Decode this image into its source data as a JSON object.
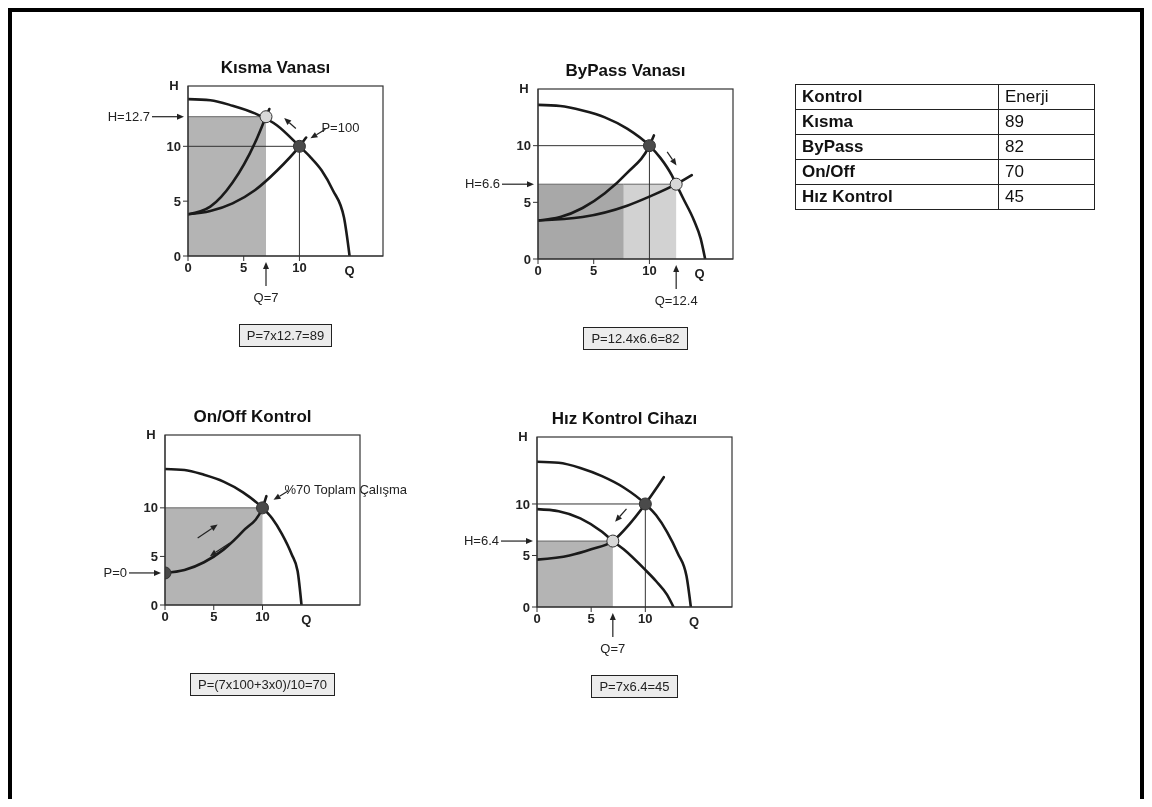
{
  "chart_data": [
    {
      "type": "line",
      "title": "Kısma Vanası",
      "xlabel": "Q",
      "ylabel": "H",
      "xlim": [
        0,
        17.5
      ],
      "ylim": [
        0,
        15.5
      ],
      "xticks": [
        0,
        5,
        10
      ],
      "yticks": [
        0,
        5,
        10
      ],
      "series": [
        {
          "type": "area",
          "color": "#b4b4b4",
          "x": [
            0,
            7
          ],
          "values": [
            12.7,
            12.7
          ]
        },
        {
          "type": "line",
          "color": "#333333",
          "x": [
            0,
            10
          ],
          "values": [
            10,
            10
          ]
        },
        {
          "type": "line",
          "color": "#333333",
          "x": [
            10,
            10
          ],
          "values": [
            0,
            10
          ]
        },
        {
          "type": "line",
          "color": "#1a1a1a",
          "x": [
            0,
            2,
            4,
            6,
            8,
            10,
            11,
            12,
            13,
            14,
            14.5
          ],
          "values": [
            14.3,
            14.2,
            13.7,
            13.0,
            11.9,
            10,
            9.0,
            7.8,
            6.0,
            3.5,
            0
          ]
        },
        {
          "type": "line",
          "color": "#1a1a1a",
          "x": [
            0,
            2,
            4,
            6,
            8,
            10,
            10.6
          ],
          "values": [
            3.8,
            4.1,
            4.8,
            6.0,
            7.8,
            10,
            10.8
          ]
        },
        {
          "type": "line",
          "color": "#1a1a1a",
          "x": [
            0,
            2,
            4,
            6,
            7,
            7.3
          ],
          "values": [
            3.8,
            4.5,
            6.7,
            10.3,
            12.7,
            13.4
          ]
        },
        {
          "type": "scatter",
          "marker": "circle",
          "color": "#4a4a4a",
          "x": [
            10
          ],
          "values": [
            10
          ]
        },
        {
          "type": "scatter",
          "marker": "circle",
          "color": "#d8d8d8",
          "x": [
            7
          ],
          "values": [
            12.7
          ]
        }
      ],
      "annotations": [
        {
          "text": "H=12.7",
          "x": 0,
          "y": 12.7
        },
        {
          "text": "P=100",
          "x": 10,
          "y": 10
        },
        {
          "text": "Q=7",
          "x": 7,
          "y": 0
        },
        "P=7x12.7=89"
      ]
    },
    {
      "type": "line",
      "title": "ByPass Vanası",
      "xlabel": "Q",
      "ylabel": "H",
      "xlim": [
        0,
        17.5
      ],
      "ylim": [
        0,
        15
      ],
      "xticks": [
        0,
        5,
        10
      ],
      "yticks": [
        0,
        5,
        10
      ],
      "series": [
        {
          "type": "area",
          "color": "#a8a8a8",
          "x": [
            0,
            7.7
          ],
          "values": [
            6.6,
            6.6
          ]
        },
        {
          "type": "area",
          "color": "#d2d2d2",
          "x": [
            7.7,
            12.4
          ],
          "values": [
            6.6,
            6.6
          ]
        },
        {
          "type": "line",
          "color": "#333333",
          "x": [
            0,
            10
          ],
          "values": [
            10,
            10
          ]
        },
        {
          "type": "line",
          "color": "#333333",
          "x": [
            10,
            10
          ],
          "values": [
            0,
            10
          ]
        },
        {
          "type": "line",
          "color": "#1a1a1a",
          "x": [
            0,
            2,
            4,
            6,
            8,
            10,
            11,
            12,
            12.4,
            13,
            14,
            14.6,
            15
          ],
          "values": [
            13.6,
            13.5,
            13.1,
            12.5,
            11.5,
            10,
            8.9,
            7.4,
            6.6,
            5.4,
            3.4,
            1.8,
            0
          ]
        },
        {
          "type": "line",
          "color": "#1a1a1a",
          "x": [
            0,
            2,
            4,
            6,
            8,
            10,
            10.4
          ],
          "values": [
            3.4,
            3.7,
            4.5,
            5.8,
            7.6,
            10,
            10.9
          ]
        },
        {
          "type": "line",
          "color": "#1a1a1a",
          "x": [
            0,
            4,
            8,
            10,
            12.4,
            13.8
          ],
          "values": [
            3.4,
            3.7,
            4.7,
            5.5,
            6.6,
            7.4
          ]
        },
        {
          "type": "scatter",
          "marker": "circle",
          "color": "#4a4a4a",
          "x": [
            10
          ],
          "values": [
            10
          ]
        },
        {
          "type": "scatter",
          "marker": "circle",
          "color": "#d8d8d8",
          "x": [
            12.4
          ],
          "values": [
            6.6
          ]
        }
      ],
      "annotations": [
        {
          "text": "H=6.6",
          "x": 0,
          "y": 6.6
        },
        {
          "text": "Q=12.4",
          "x": 12.4,
          "y": 0
        },
        "P=12.4x6.6=82"
      ]
    },
    {
      "type": "line",
      "title": "On/Off Kontrol",
      "xlabel": "Q",
      "ylabel": "H",
      "xlim": [
        0,
        20
      ],
      "ylim": [
        0,
        17.5
      ],
      "xticks": [
        0,
        5,
        10
      ],
      "yticks": [
        0,
        5,
        10
      ],
      "series": [
        {
          "type": "area",
          "color": "#b4b4b4",
          "x": [
            0,
            10
          ],
          "values": [
            10,
            10
          ]
        },
        {
          "type": "line",
          "color": "#1a1a1a",
          "x": [
            0,
            2,
            4,
            6,
            8,
            10,
            11,
            12,
            13,
            13.6,
            14
          ],
          "values": [
            14,
            13.9,
            13.4,
            12.7,
            11.6,
            10,
            8.9,
            7.3,
            5.2,
            3.5,
            0
          ]
        },
        {
          "type": "line",
          "color": "#1a1a1a",
          "x": [
            0,
            2,
            4,
            6,
            8,
            10,
            10.4
          ],
          "values": [
            3.3,
            3.6,
            4.4,
            5.7,
            7.6,
            10,
            11.2
          ]
        },
        {
          "type": "scatter",
          "marker": "circle",
          "color": "#4a4a4a",
          "x": [
            0,
            10
          ],
          "values": [
            3.3,
            10
          ]
        }
      ],
      "annotations": [
        {
          "text": "P=0",
          "x": 0,
          "y": 3.3
        },
        {
          "text": "%70 Toplam Çalışma",
          "x": 10,
          "y": 10
        },
        "P=(7x100+3x0)/10=70"
      ]
    },
    {
      "type": "line",
      "title": "Hız Kontrol Cihazı",
      "xlabel": "Q",
      "ylabel": "H",
      "xlim": [
        0,
        18
      ],
      "ylim": [
        0,
        16.5
      ],
      "xticks": [
        0,
        5,
        10
      ],
      "yticks": [
        0,
        5,
        10
      ],
      "series": [
        {
          "type": "area",
          "color": "#b4b4b4",
          "x": [
            0,
            7
          ],
          "values": [
            6.4,
            6.4
          ]
        },
        {
          "type": "line",
          "color": "#333333",
          "x": [
            0,
            10
          ],
          "values": [
            10,
            10
          ]
        },
        {
          "type": "line",
          "color": "#333333",
          "x": [
            10,
            10
          ],
          "values": [
            0,
            10
          ]
        },
        {
          "type": "line",
          "color": "#1a1a1a",
          "x": [
            0,
            2,
            4,
            6,
            8,
            10,
            11,
            12,
            13,
            13.8,
            14.2
          ],
          "values": [
            14.1,
            14,
            13.5,
            12.7,
            11.6,
            10,
            8.9,
            7.3,
            5.2,
            3,
            0
          ]
        },
        {
          "type": "line",
          "color": "#1a1a1a",
          "x": [
            0,
            2,
            4,
            6,
            7,
            8,
            10,
            11,
            12,
            12.6
          ],
          "values": [
            9.5,
            9.3,
            8.6,
            7.3,
            6.4,
            5.6,
            3.6,
            2.5,
            1.2,
            0
          ]
        },
        {
          "type": "line",
          "color": "#1a1a1a",
          "x": [
            0,
            3,
            5,
            7,
            8.5,
            10,
            11,
            11.7
          ],
          "values": [
            4.6,
            5.0,
            5.6,
            6.4,
            8.0,
            10,
            11.5,
            12.6
          ]
        },
        {
          "type": "scatter",
          "marker": "circle",
          "color": "#4a4a4a",
          "x": [
            10
          ],
          "values": [
            10
          ]
        },
        {
          "type": "scatter",
          "marker": "circle",
          "color": "#d8d8d8",
          "x": [
            7
          ],
          "values": [
            6.4
          ]
        }
      ],
      "annotations": [
        {
          "text": "H=6.4",
          "x": 0,
          "y": 6.4
        },
        {
          "text": "Q=7",
          "x": 7,
          "y": 0
        },
        "P=7x6.4=45"
      ]
    },
    {
      "type": "other",
      "xlabel": "Kontrol",
      "ylabel": "Enerji",
      "categories": [
        "Kısma",
        "ByPass",
        "On/Off",
        "Hız Kontrol"
      ],
      "values": [
        89,
        82,
        70,
        45
      ],
      "data_labels": true
    }
  ]
}
